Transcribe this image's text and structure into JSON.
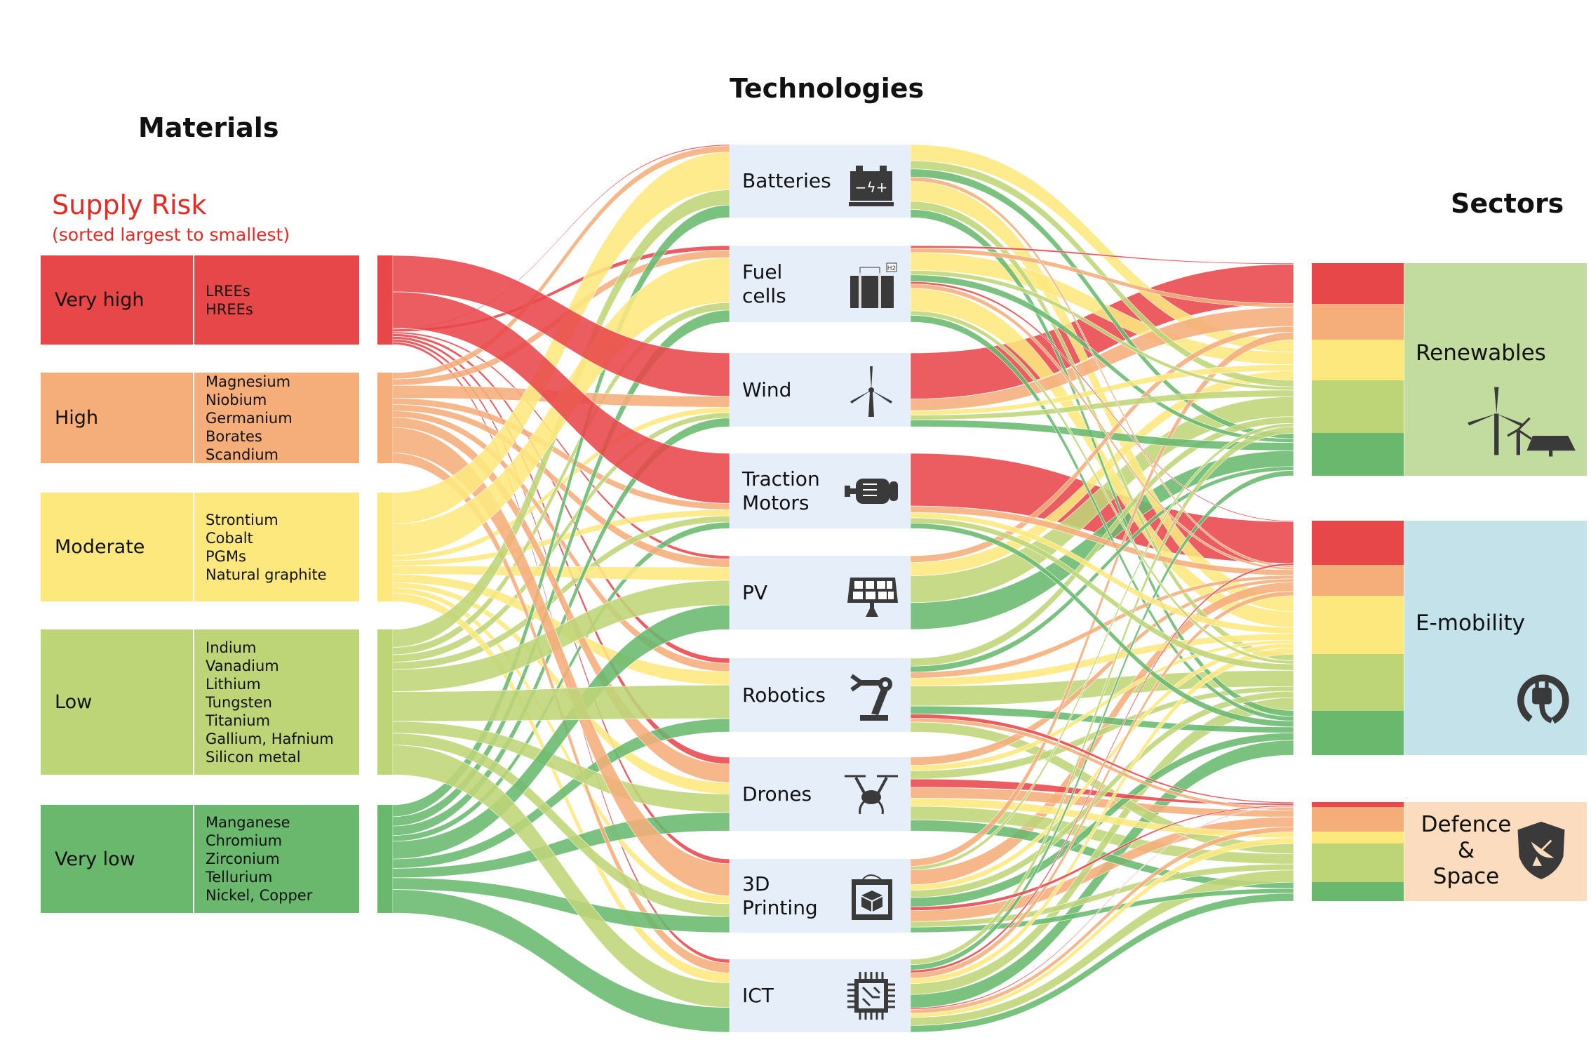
{
  "titles": {
    "materials": "Materials",
    "technologies": "Technologies",
    "sectors": "Sectors"
  },
  "supply_risk": {
    "title": "Supply Risk",
    "subtitle": "(sorted largest to smallest)"
  },
  "colors": {
    "VH": "#e8474a",
    "H": "#f5ad7a",
    "M": "#fde87e",
    "L": "#bed577",
    "VL": "#69b86e",
    "tech_bg": "#e5eef9",
    "renewables_bg": "#c2dca0",
    "emobility_bg": "#c3e2ea",
    "defence_bg": "#fbdcbf",
    "icon": "#3a3a3a"
  },
  "materials": [
    {
      "id": "VH",
      "level": "Very high",
      "items": [
        "LREEs",
        "HREEs"
      ]
    },
    {
      "id": "H",
      "level": "High",
      "items": [
        "Magnesium",
        "Niobium",
        "Germanium",
        "Borates",
        "Scandium"
      ]
    },
    {
      "id": "M",
      "level": "Moderate",
      "items": [
        "Strontium",
        "Cobalt",
        "PGMs",
        "Natural graphite"
      ]
    },
    {
      "id": "L",
      "level": "Low",
      "items": [
        "Indium",
        "Vanadium",
        "Lithium",
        "Tungsten",
        "Titanium",
        "Gallium, Hafnium",
        "Silicon metal"
      ]
    },
    {
      "id": "VL",
      "level": "Very low",
      "items": [
        "Manganese",
        "Chromium",
        "Zirconium",
        "Tellurium",
        "Nickel, Copper"
      ]
    }
  ],
  "technologies": [
    {
      "id": "bat",
      "label": "Batteries",
      "icon": "battery-icon"
    },
    {
      "id": "fc",
      "label": "Fuel\ncells",
      "icon": "fuel-cell-icon"
    },
    {
      "id": "wind",
      "label": "Wind",
      "icon": "wind-turbine-icon"
    },
    {
      "id": "tm",
      "label": "Traction\nMotors",
      "icon": "motor-icon"
    },
    {
      "id": "pv",
      "label": "PV",
      "icon": "solar-panel-icon"
    },
    {
      "id": "rob",
      "label": "Robotics",
      "icon": "robot-arm-icon"
    },
    {
      "id": "dr",
      "label": "Drones",
      "icon": "drone-icon"
    },
    {
      "id": "3d",
      "label": "3D\nPrinting",
      "icon": "3d-printer-icon"
    },
    {
      "id": "ict",
      "label": "ICT",
      "icon": "chip-icon"
    }
  ],
  "sectors": [
    {
      "id": "ren",
      "label": "Renewables",
      "icon": "wind-solar-icon",
      "shares": {
        "VH": 19,
        "H": 17,
        "M": 19,
        "L": 25,
        "VL": 20
      }
    },
    {
      "id": "emob",
      "label": "E-mobility",
      "icon": "plug-icon",
      "shares": {
        "VH": 19,
        "H": 13,
        "M": 25,
        "L": 24,
        "VL": 19
      }
    },
    {
      "id": "def",
      "label": "Defence\n&\nSpace",
      "icon": "shield-satellite-icon",
      "shares": {
        "VH": 5,
        "H": 25,
        "M": 12,
        "L": 39,
        "VL": 19
      }
    }
  ],
  "chart_data": {
    "type": "sankey",
    "material_to_technology": [
      [
        "VH",
        "wind",
        40
      ],
      [
        "VH",
        "tm",
        40
      ],
      [
        "VH",
        "bat",
        1
      ],
      [
        "VH",
        "fc",
        3
      ],
      [
        "VH",
        "pv",
        2
      ],
      [
        "VH",
        "rob",
        3
      ],
      [
        "VH",
        "dr",
        3
      ],
      [
        "VH",
        "3d",
        3
      ],
      [
        "VH",
        "ict",
        3
      ],
      [
        "H",
        "bat",
        5
      ],
      [
        "H",
        "fc",
        5
      ],
      [
        "H",
        "wind",
        10
      ],
      [
        "H",
        "tm",
        5
      ],
      [
        "H",
        "pv",
        5
      ],
      [
        "H",
        "rob",
        5
      ],
      [
        "H",
        "dr",
        8
      ],
      [
        "H",
        "3d",
        20
      ],
      [
        "H",
        "ict",
        8
      ],
      [
        "M",
        "bat",
        30
      ],
      [
        "M",
        "fc",
        30
      ],
      [
        "M",
        "wind",
        5
      ],
      [
        "M",
        "tm",
        5
      ],
      [
        "M",
        "pv",
        8
      ],
      [
        "M",
        "rob",
        8
      ],
      [
        "M",
        "dr",
        5
      ],
      [
        "M",
        "3d",
        5
      ],
      [
        "M",
        "ict",
        8
      ],
      [
        "L",
        "bat",
        12
      ],
      [
        "L",
        "fc",
        5
      ],
      [
        "L",
        "wind",
        5
      ],
      [
        "L",
        "tm",
        5
      ],
      [
        "L",
        "pv",
        15
      ],
      [
        "L",
        "rob",
        20
      ],
      [
        "L",
        "dr",
        8
      ],
      [
        "L",
        "3d",
        8
      ],
      [
        "L",
        "ict",
        20
      ],
      [
        "VL",
        "bat",
        10
      ],
      [
        "VL",
        "fc",
        8
      ],
      [
        "VL",
        "wind",
        8
      ],
      [
        "VL",
        "tm",
        5
      ],
      [
        "VL",
        "pv",
        15
      ],
      [
        "VL",
        "rob",
        8
      ],
      [
        "VL",
        "dr",
        8
      ],
      [
        "VL",
        "3d",
        10
      ],
      [
        "VL",
        "ict",
        20
      ]
    ],
    "technology_to_sector": [
      [
        "bat",
        "ren",
        "M",
        8
      ],
      [
        "bat",
        "ren",
        "L",
        4
      ],
      [
        "bat",
        "ren",
        "VL",
        4
      ],
      [
        "bat",
        "emob",
        "H",
        2
      ],
      [
        "bat",
        "emob",
        "M",
        10
      ],
      [
        "bat",
        "emob",
        "L",
        4
      ],
      [
        "bat",
        "emob",
        "VL",
        4
      ],
      [
        "fc",
        "ren",
        "VH",
        1
      ],
      [
        "fc",
        "ren",
        "H",
        2
      ],
      [
        "fc",
        "ren",
        "M",
        8
      ],
      [
        "fc",
        "ren",
        "L",
        2
      ],
      [
        "fc",
        "ren",
        "VL",
        3
      ],
      [
        "fc",
        "emob",
        "VH",
        1
      ],
      [
        "fc",
        "emob",
        "H",
        2
      ],
      [
        "fc",
        "emob",
        "M",
        10
      ],
      [
        "fc",
        "emob",
        "L",
        2
      ],
      [
        "fc",
        "emob",
        "VL",
        3
      ],
      [
        "wind",
        "ren",
        "VH",
        40
      ],
      [
        "wind",
        "ren",
        "H",
        10
      ],
      [
        "wind",
        "ren",
        "M",
        4
      ],
      [
        "wind",
        "ren",
        "L",
        4
      ],
      [
        "wind",
        "ren",
        "VL",
        6
      ],
      [
        "tm",
        "emob",
        "VH",
        40
      ],
      [
        "tm",
        "emob",
        "H",
        5
      ],
      [
        "tm",
        "emob",
        "M",
        4
      ],
      [
        "tm",
        "emob",
        "L",
        4
      ],
      [
        "tm",
        "emob",
        "VL",
        4
      ],
      [
        "pv",
        "ren",
        "H",
        3
      ],
      [
        "pv",
        "ren",
        "M",
        6
      ],
      [
        "pv",
        "ren",
        "L",
        12
      ],
      [
        "pv",
        "ren",
        "VL",
        12
      ],
      [
        "rob",
        "ren",
        "L",
        4
      ],
      [
        "rob",
        "ren",
        "VL",
        3
      ],
      [
        "rob",
        "emob",
        "H",
        3
      ],
      [
        "rob",
        "emob",
        "M",
        4
      ],
      [
        "rob",
        "emob",
        "L",
        10
      ],
      [
        "rob",
        "emob",
        "VL",
        4
      ],
      [
        "rob",
        "def",
        "VH",
        2
      ],
      [
        "rob",
        "def",
        "H",
        2
      ],
      [
        "rob",
        "def",
        "L",
        5
      ],
      [
        "dr",
        "emob",
        "H",
        3
      ],
      [
        "dr",
        "emob",
        "M",
        2
      ],
      [
        "dr",
        "emob",
        "L",
        3
      ],
      [
        "dr",
        "def",
        "VH",
        3
      ],
      [
        "dr",
        "def",
        "H",
        4
      ],
      [
        "dr",
        "def",
        "M",
        3
      ],
      [
        "dr",
        "def",
        "L",
        5
      ],
      [
        "dr",
        "def",
        "VL",
        4
      ],
      [
        "3d",
        "ren",
        "H",
        4
      ],
      [
        "3d",
        "ren",
        "L",
        2
      ],
      [
        "3d",
        "emob",
        "H",
        8
      ],
      [
        "3d",
        "emob",
        "M",
        3
      ],
      [
        "3d",
        "emob",
        "L",
        4
      ],
      [
        "3d",
        "emob",
        "VL",
        5
      ],
      [
        "3d",
        "def",
        "VH",
        2
      ],
      [
        "3d",
        "def",
        "H",
        6
      ],
      [
        "3d",
        "def",
        "L",
        3
      ],
      [
        "3d",
        "def",
        "VL",
        3
      ],
      [
        "ict",
        "ren",
        "L",
        4
      ],
      [
        "ict",
        "ren",
        "VL",
        4
      ],
      [
        "ict",
        "emob",
        "VH",
        2
      ],
      [
        "ict",
        "emob",
        "H",
        4
      ],
      [
        "ict",
        "emob",
        "M",
        4
      ],
      [
        "ict",
        "emob",
        "L",
        8
      ],
      [
        "ict",
        "emob",
        "VL",
        10
      ],
      [
        "ict",
        "def",
        "VH",
        1
      ],
      [
        "ict",
        "def",
        "H",
        3
      ],
      [
        "ict",
        "def",
        "M",
        3
      ],
      [
        "ict",
        "def",
        "L",
        6
      ],
      [
        "ict",
        "def",
        "VL",
        5
      ]
    ]
  }
}
